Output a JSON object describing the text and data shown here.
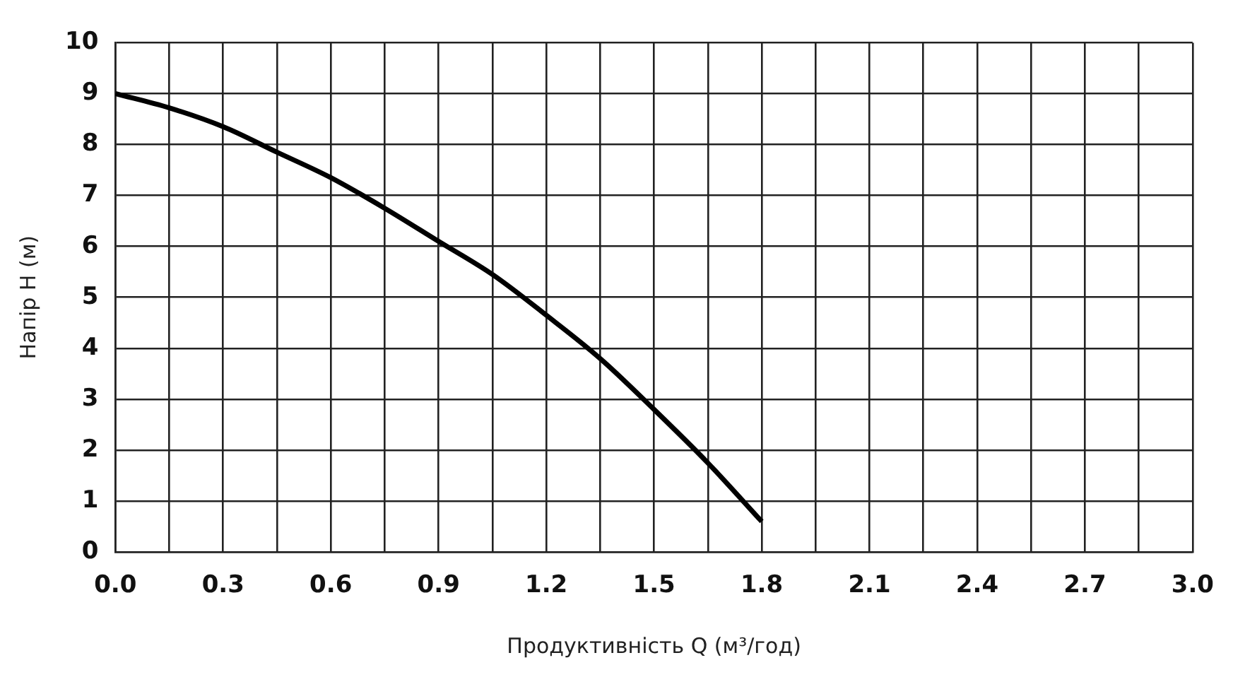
{
  "chart_data": {
    "type": "line",
    "xlabel": "Продуктивність Q (м³/год)",
    "ylabel": "Напір H (м)",
    "series": [
      {
        "color": "#000000",
        "x": [
          0,
          0.15,
          0.3,
          0.45,
          0.6,
          0.75,
          0.9,
          1.05,
          1.2,
          1.35,
          1.5,
          1.65,
          1.8
        ],
        "values": [
          9,
          8.72,
          8.35,
          7.85,
          7.35,
          6.75,
          6.1,
          5.45,
          4.65,
          3.8,
          2.8,
          1.75,
          0.6
        ]
      }
    ],
    "xlim": [
      0,
      3
    ],
    "xticks": [
      {
        "value": 0,
        "label": "0.0"
      },
      {
        "value": 0.15,
        "label": null
      },
      {
        "value": 0.3,
        "label": "0.3"
      },
      {
        "value": 0.45,
        "label": null
      },
      {
        "value": 0.6,
        "label": "0.6"
      },
      {
        "value": 0.75,
        "label": null
      },
      {
        "value": 0.9,
        "label": "0.9"
      },
      {
        "value": 1.05,
        "label": null
      },
      {
        "value": 1.2,
        "label": "1.2"
      },
      {
        "value": 1.35,
        "label": null
      },
      {
        "value": 1.5,
        "label": "1.5"
      },
      {
        "value": 1.65,
        "label": null
      },
      {
        "value": 1.8,
        "label": "1.8"
      },
      {
        "value": 1.95,
        "label": null
      },
      {
        "value": 2.1,
        "label": "2.1"
      },
      {
        "value": 2.25,
        "label": null
      },
      {
        "value": 2.4,
        "label": "2.4"
      },
      {
        "value": 2.55,
        "label": null
      },
      {
        "value": 2.7,
        "label": "2.7"
      },
      {
        "value": 2.85,
        "label": null
      },
      {
        "value": 3,
        "label": "3.0"
      }
    ],
    "ylim": [
      0,
      10
    ],
    "yticks": [
      0,
      1,
      2,
      3,
      4,
      5,
      6,
      7,
      8,
      9,
      10
    ],
    "grid": true,
    "legend": false,
    "marker": "none",
    "line_style": "solid"
  }
}
